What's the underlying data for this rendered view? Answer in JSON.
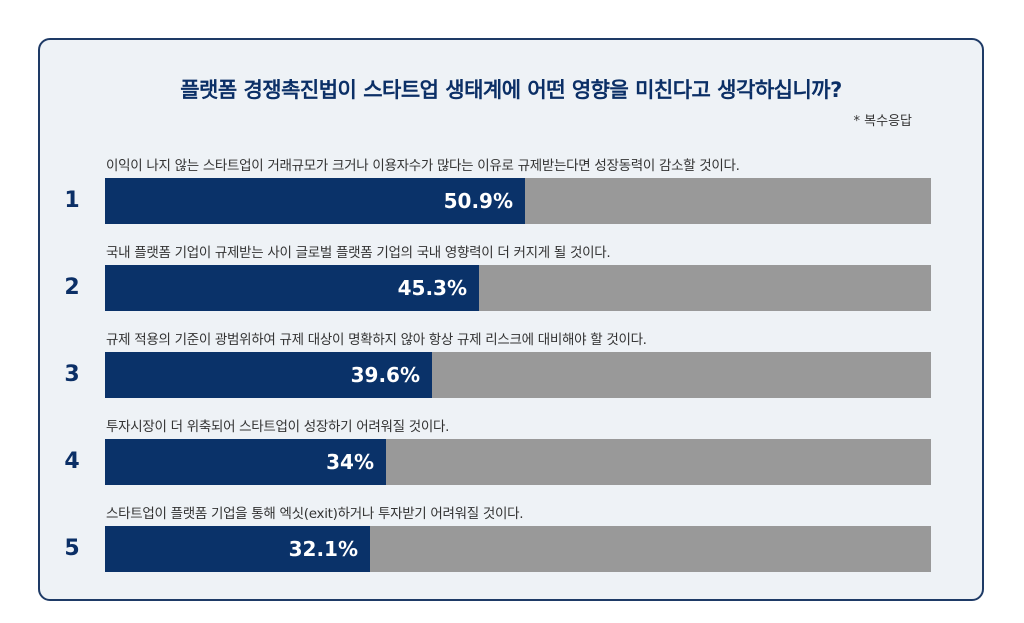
{
  "chart_data": {
    "type": "bar",
    "title": "플랫폼 경쟁촉진법이 스타트업 생태계에 어떤 영향을 미친다고 생각하십니까?",
    "note": "* 복수응답",
    "orientation": "horizontal",
    "ylim": [
      0,
      100
    ],
    "colors": {
      "fill": "#0a3269",
      "track": "#999999",
      "accent_text": "#0b2f66"
    },
    "items": [
      {
        "num": "1",
        "label": "이익이 나지 않는 스타트업이 거래규모가 크거나 이용자수가 많다는 이유로 규제받는다면 성장동력이 감소할 것이다.",
        "value": 50.9,
        "value_label": "50.9%"
      },
      {
        "num": "2",
        "label": "국내 플랫폼 기업이 규제받는 사이 글로벌 플랫폼 기업의 국내 영향력이 더 커지게 될 것이다.",
        "value": 45.3,
        "value_label": "45.3%"
      },
      {
        "num": "3",
        "label": "규제 적용의 기준이 광범위하여 규제 대상이 명확하지 않아 항상 규제 리스크에 대비해야 할 것이다.",
        "value": 39.6,
        "value_label": "39.6%"
      },
      {
        "num": "4",
        "label": "투자시장이 더 위축되어 스타트업이 성장하기 어려워질 것이다.",
        "value": 34,
        "value_label": "34%"
      },
      {
        "num": "5",
        "label": "스타트업이 플랫폼 기업을 통해 엑싯(exit)하거나 투자받기 어려워질 것이다.",
        "value": 32.1,
        "value_label": "32.1%"
      }
    ]
  }
}
